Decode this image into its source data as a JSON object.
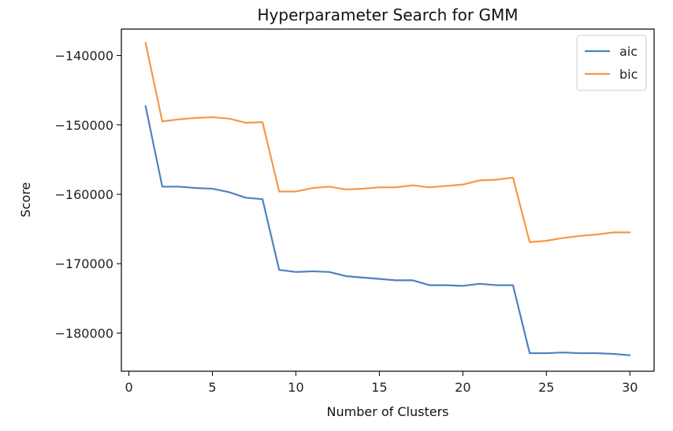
{
  "chart_data": {
    "type": "line",
    "title": "Hyperparameter Search for GMM",
    "xlabel": "Number of Clusters",
    "ylabel": "Score",
    "xlim": [
      -0.45,
      31.45
    ],
    "ylim": [
      -185500,
      -136200
    ],
    "xticks": [
      0,
      5,
      10,
      15,
      20,
      25,
      30
    ],
    "xtick_labels": [
      "0",
      "5",
      "10",
      "15",
      "20",
      "25",
      "30"
    ],
    "yticks": [
      -180000,
      -170000,
      -160000,
      -150000,
      -140000
    ],
    "ytick_labels": [
      "−180000",
      "−170000",
      "−160000",
      "−150000",
      "−140000"
    ],
    "grid": false,
    "legend": "top-right",
    "x": [
      1,
      2,
      3,
      4,
      5,
      6,
      7,
      8,
      9,
      10,
      11,
      12,
      13,
      14,
      15,
      16,
      17,
      18,
      19,
      20,
      21,
      22,
      23,
      24,
      25,
      26,
      27,
      28,
      29,
      30
    ],
    "series": [
      {
        "name": "aic",
        "color": "#4f81bd",
        "values": [
          -147300,
          -158900,
          -158900,
          -159100,
          -159200,
          -159700,
          -160500,
          -160700,
          -170900,
          -171200,
          -171100,
          -171200,
          -171800,
          -172000,
          -172200,
          -172400,
          -172400,
          -173100,
          -173100,
          -173200,
          -172900,
          -173100,
          -173100,
          -182900,
          -182900,
          -182800,
          -182900,
          -182900,
          -183000,
          -183200
        ]
      },
      {
        "name": "bic",
        "color": "#f79646",
        "values": [
          -138200,
          -149500,
          -149200,
          -149000,
          -148900,
          -149100,
          -149700,
          -149600,
          -159600,
          -159600,
          -159100,
          -158900,
          -159300,
          -159200,
          -159000,
          -159000,
          -158700,
          -159000,
          -158800,
          -158600,
          -158000,
          -157900,
          -157600,
          -166900,
          -166700,
          -166300,
          -166000,
          -165800,
          -165500,
          -165500
        ]
      }
    ]
  }
}
